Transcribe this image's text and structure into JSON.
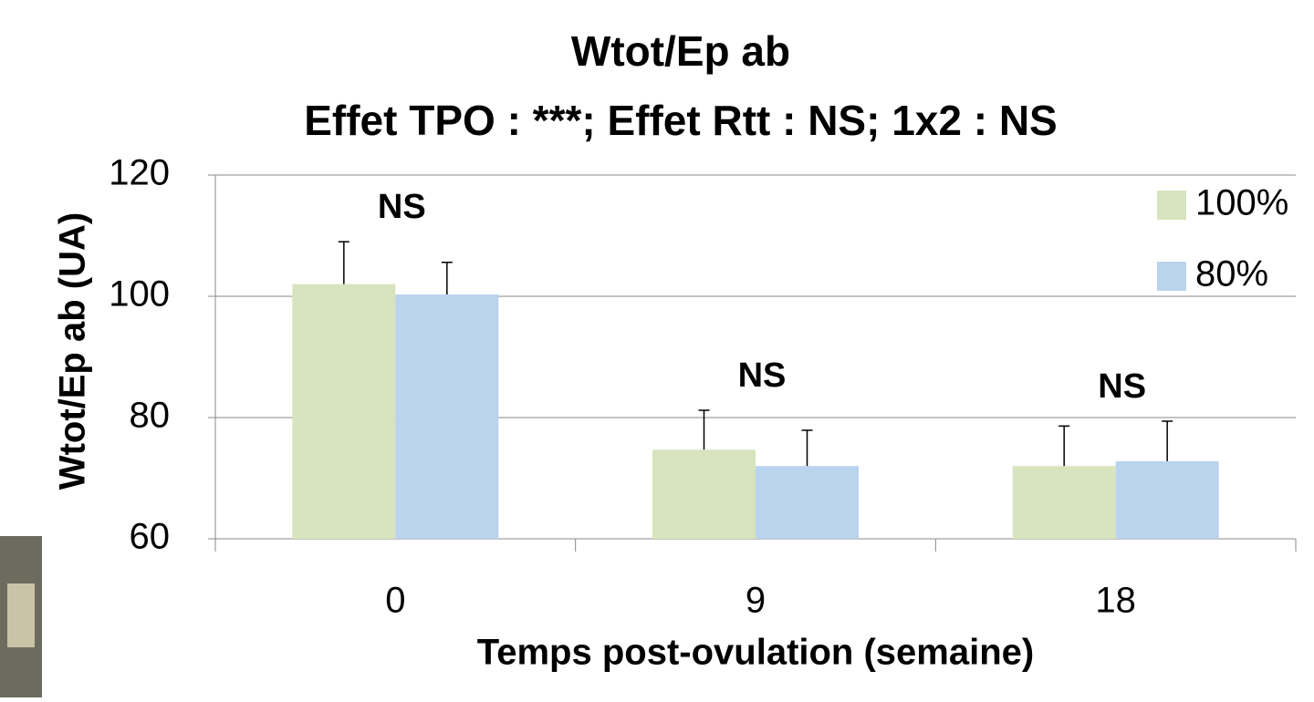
{
  "chart_data": {
    "type": "bar",
    "title": "Wtot/Ep ab",
    "subtitle": "Effet TPO : ***; Effet Rtt : NS;  1x2 : NS",
    "x_label": "Temps post-ovulation (semaine)",
    "y_label": "Wtot/Ep ab (UA)",
    "categories": [
      "0",
      "9",
      "18"
    ],
    "series": [
      {
        "name": "100%",
        "color": "#d7e4bd",
        "values": [
          102,
          74.7,
          72.0
        ],
        "errors": [
          7.0,
          6.5,
          6.6
        ]
      },
      {
        "name": "80%",
        "color": "#b9d4ec",
        "values": [
          100.3,
          72.0,
          72.8
        ],
        "errors": [
          5.3,
          5.9,
          6.6
        ]
      }
    ],
    "annotations": [
      "NS",
      "NS",
      "NS"
    ],
    "ylim": [
      60,
      120
    ],
    "yticks": [
      60,
      80,
      100,
      120
    ],
    "grid": true,
    "legend": "top-right"
  }
}
